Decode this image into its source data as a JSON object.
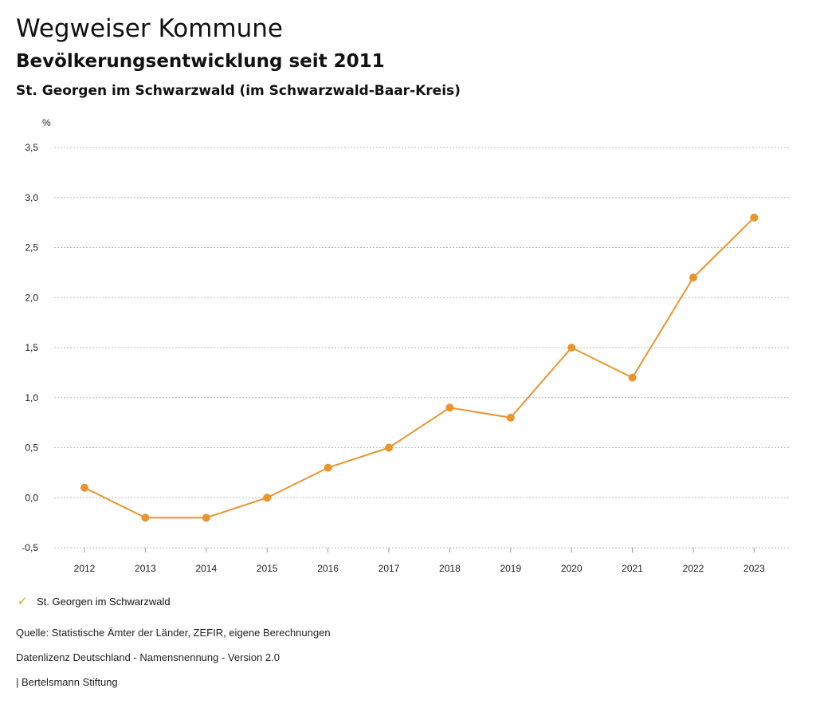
{
  "header": {
    "title": "Wegweiser Kommune",
    "subtitle": "Bevölkerungsentwicklung seit 2011",
    "region": "St. Georgen im Schwarzwald (im Schwarzwald-Baar-Kreis)"
  },
  "colors": {
    "series": "#E8952E",
    "grid": "#bbbbbb"
  },
  "chart_data": {
    "type": "line",
    "title": "Bevölkerungsentwicklung seit 2011",
    "ylabel": "%",
    "x": [
      "2012",
      "2013",
      "2014",
      "2015",
      "2016",
      "2017",
      "2018",
      "2019",
      "2020",
      "2021",
      "2022",
      "2023"
    ],
    "series": [
      {
        "name": "St. Georgen im Schwarzwald",
        "values": [
          0.1,
          -0.2,
          -0.2,
          0.0,
          0.3,
          0.5,
          0.9,
          0.8,
          1.5,
          1.2,
          2.2,
          2.8
        ]
      }
    ],
    "yticks": [
      "3,5",
      "3,0",
      "2,5",
      "2,0",
      "1,5",
      "1,0",
      "0,5",
      "0,0",
      "-0,5"
    ],
    "ytick_values": [
      3.5,
      3.0,
      2.5,
      2.0,
      1.5,
      1.0,
      0.5,
      0.0,
      -0.5
    ],
    "ylim": [
      -0.5,
      3.5
    ],
    "grid": true,
    "legend_position": "bottom-left"
  },
  "legend": {
    "icon": "check-icon",
    "label": "St. Georgen im Schwarzwald"
  },
  "footer": {
    "source": "Quelle: Statistische Ämter der Länder, ZEFIR, eigene Berechnungen",
    "license": "Datenlizenz Deutschland - Namensnennung - Version 2.0",
    "publisher": "| Bertelsmann Stiftung"
  }
}
